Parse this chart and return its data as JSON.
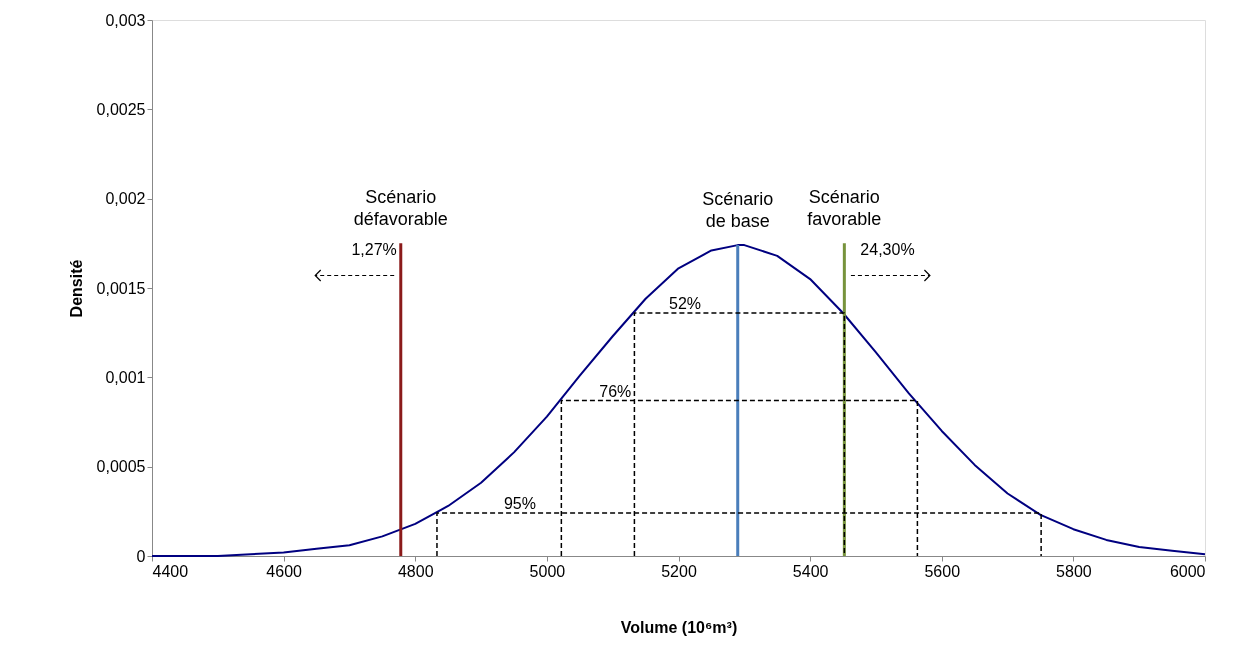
{
  "chart_data": {
    "type": "line",
    "xlabel": "Volume (10⁶m³)",
    "ylabel": "Densité",
    "xlim": [
      4400,
      6000
    ],
    "ylim": [
      0,
      0.003
    ],
    "xticks": [
      4400,
      4600,
      4800,
      5000,
      5200,
      5400,
      5600,
      5800,
      6000
    ],
    "yticks": [
      0,
      {
        "value": 0.0005,
        "label": "0,0005"
      },
      {
        "value": 0.001,
        "label": "0,001"
      },
      {
        "value": 0.0015,
        "label": "0,0015"
      },
      {
        "value": 0.002,
        "label": "0,002"
      },
      {
        "value": 0.0025,
        "label": "0,0025"
      },
      {
        "value": 0.003,
        "label": "0,003"
      }
    ],
    "line_style": "solid",
    "series": [
      {
        "color": "#000080",
        "x": [
          4400,
          4450,
          4500,
          4550,
          4600,
          4650,
          4700,
          4750,
          4800,
          4850,
          4900,
          4950,
          5000,
          5050,
          5100,
          5150,
          5200,
          5250,
          5290,
          5300,
          5350,
          5400,
          5450,
          5500,
          5550,
          5600,
          5650,
          5700,
          5750,
          5800,
          5850,
          5900,
          5950,
          6000
        ],
        "values": [
          0,
          0,
          0,
          1e-05,
          2e-05,
          4e-05,
          6e-05,
          0.00011,
          0.00018,
          0.00028,
          0.00041,
          0.00058,
          0.00078,
          0.00101,
          0.00123,
          0.00144,
          0.00161,
          0.00171,
          0.00174,
          0.00174,
          0.00168,
          0.00155,
          0.00136,
          0.00114,
          0.00091,
          0.0007,
          0.00051,
          0.00035,
          0.00023,
          0.00015,
          9e-05,
          5e-05,
          3e-05,
          1e-05
        ]
      },
      {
        "name": "Scénario défavorable",
        "color": "#8b1a1a",
        "x": [
          4778,
          4778
        ],
        "values": [
          0,
          0.00175
        ]
      },
      {
        "name": "Scénario de base",
        "color": "#4a7ebb",
        "x": [
          5290,
          5290
        ],
        "values": [
          0,
          0.00174
        ]
      },
      {
        "name": "Scénario favorable",
        "color": "#77933c",
        "x": [
          5452,
          5452
        ],
        "values": [
          0,
          0.00175
        ]
      },
      {
        "color": "#000000",
        "line_style": "dashed",
        "x": [
          5133,
          5133,
          5452,
          5452
        ],
        "values": [
          0,
          0.00136,
          0.00136,
          0
        ]
      },
      {
        "color": "#000000",
        "line_style": "dashed",
        "x": [
          5022,
          5022,
          5563,
          5563
        ],
        "values": [
          0,
          0.00087,
          0.00087,
          0
        ]
      },
      {
        "color": "#000000",
        "line_style": "dashed",
        "x": [
          4833,
          4833,
          5751,
          5751
        ],
        "values": [
          0,
          0.00024,
          0.00024,
          0
        ]
      }
    ],
    "annotations": [
      {
        "text": "52%",
        "x": 5210,
        "y": 0.00136
      },
      {
        "text": "76%",
        "x": 5104,
        "y": 0.00087
      },
      {
        "text": "95%",
        "x": 4959,
        "y": 0.00024
      },
      "1,27%",
      "24,30%"
    ]
  }
}
